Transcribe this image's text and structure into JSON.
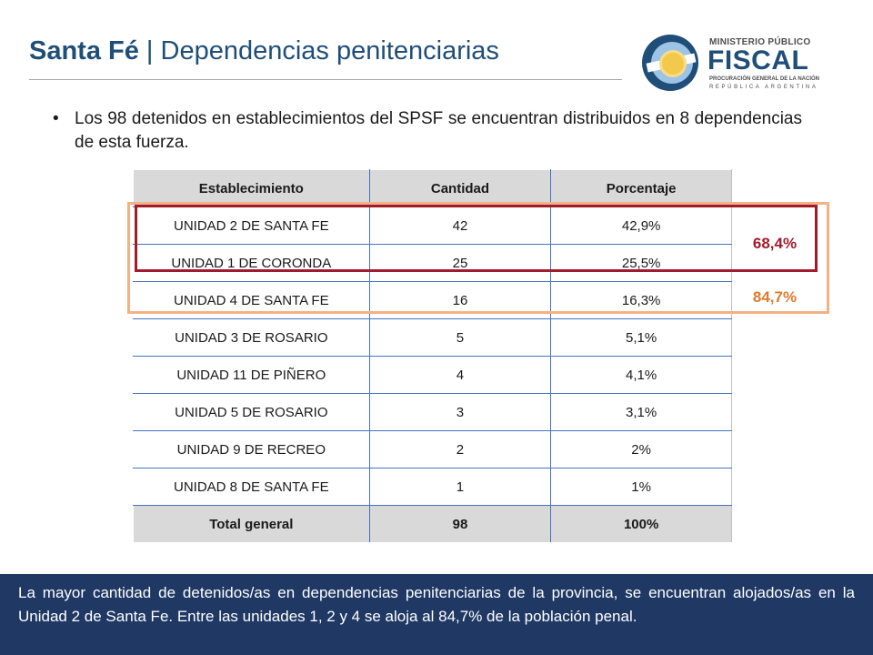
{
  "header": {
    "title_bold": "Santa Fé",
    "title_rest": " | Dependencias penitenciarias"
  },
  "logo": {
    "line1": "MINISTERIO PÚBLICO",
    "line2": "FISCAL",
    "line3": "PROCURACIÓN GENERAL DE LA NACIÓN",
    "line4": "REPÚBLICA ARGENTINA",
    "icon": "argentina-sun-icon"
  },
  "bullet": {
    "symbol": "•",
    "text": "Los 98 detenidos en establecimientos del SPSF se encuentran distribuidos en 8 dependencias de esta fuerza."
  },
  "table": {
    "headers": [
      "Establecimiento",
      "Cantidad",
      "Porcentaje"
    ],
    "rows": [
      [
        "UNIDAD 2 DE SANTA FE",
        "42",
        "42,9%"
      ],
      [
        "UNIDAD 1 DE CORONDA",
        "25",
        "25,5%"
      ],
      [
        "UNIDAD 4 DE SANTA FE",
        "16",
        "16,3%"
      ],
      [
        "UNIDAD 3 DE ROSARIO",
        "5",
        "5,1%"
      ],
      [
        "UNIDAD 11 DE PIÑERO",
        "4",
        "4,1%"
      ],
      [
        "UNIDAD 5 DE ROSARIO",
        "3",
        "3,1%"
      ],
      [
        "UNIDAD 9 DE RECREO",
        "2",
        "2%"
      ],
      [
        "UNIDAD 8 DE SANTA FE",
        "1",
        "1%"
      ]
    ],
    "total": [
      "Total general",
      "98",
      "100%"
    ]
  },
  "highlights": {
    "red_label": "68,4%",
    "orange_label": "84,7%",
    "red_color": "#a01c2d",
    "orange_color": "#f4b183"
  },
  "footer": {
    "text": "La mayor cantidad de detenidos/as en dependencias penitenciarias de la provincia, se encuentran alojados/as en la Unidad 2 de Santa Fe.  Entre las unidades 1, 2 y 4 se aloja al 84,7% de la población penal."
  },
  "colors": {
    "title": "#1f4e79",
    "footer_bg": "#1f3864",
    "header_row_bg": "#d9d9d9",
    "grid_line": "#4472c4"
  }
}
